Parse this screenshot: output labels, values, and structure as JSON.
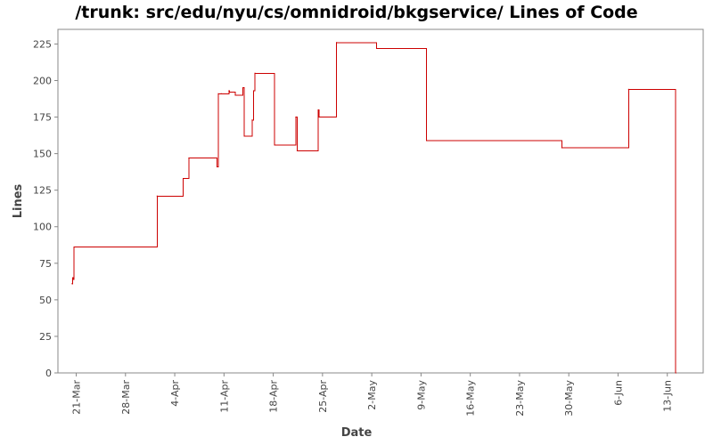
{
  "chart_data": {
    "type": "line",
    "title": "/trunk: src/edu/nyu/cs/omnidroid/bkgservice/ Lines of Code",
    "xlabel": "Date",
    "ylabel": "Lines",
    "ylim": [
      0,
      235
    ],
    "yticks": [
      0,
      25,
      50,
      75,
      100,
      125,
      150,
      175,
      200,
      225
    ],
    "xticks": [
      {
        "label": "21-Mar",
        "day": 0
      },
      {
        "label": "28-Mar",
        "day": 7
      },
      {
        "label": "4-Apr",
        "day": 14
      },
      {
        "label": "11-Apr",
        "day": 21
      },
      {
        "label": "18-Apr",
        "day": 28
      },
      {
        "label": "25-Apr",
        "day": 35
      },
      {
        "label": "2-May",
        "day": 42
      },
      {
        "label": "9-May",
        "day": 49
      },
      {
        "label": "16-May",
        "day": 56
      },
      {
        "label": "23-May",
        "day": 63
      },
      {
        "label": "30-May",
        "day": 70
      },
      {
        "label": "6-Jun",
        "day": 77
      },
      {
        "label": "13-Jun",
        "day": 84
      }
    ],
    "xlim_days": [
      -2.6,
      89.1
    ],
    "grid": false,
    "line_color": "#cc0000",
    "series": [
      {
        "step": true,
        "points": [
          {
            "day": -0.6,
            "value": 61
          },
          {
            "day": -0.5,
            "value": 65
          },
          {
            "day": -0.4,
            "value": 64
          },
          {
            "day": -0.3,
            "value": 86
          },
          {
            "day": 11.5,
            "value": 121
          },
          {
            "day": 15.2,
            "value": 133
          },
          {
            "day": 16.0,
            "value": 147
          },
          {
            "day": 20.0,
            "value": 141
          },
          {
            "day": 20.2,
            "value": 191
          },
          {
            "day": 20.6,
            "value": 191
          },
          {
            "day": 21.7,
            "value": 193
          },
          {
            "day": 21.8,
            "value": 192
          },
          {
            "day": 22.6,
            "value": 190
          },
          {
            "day": 23.7,
            "value": 195
          },
          {
            "day": 23.9,
            "value": 162
          },
          {
            "day": 25.0,
            "value": 173
          },
          {
            "day": 25.2,
            "value": 193
          },
          {
            "day": 25.4,
            "value": 205
          },
          {
            "day": 28.2,
            "value": 156
          },
          {
            "day": 31.2,
            "value": 175
          },
          {
            "day": 31.4,
            "value": 152
          },
          {
            "day": 34.4,
            "value": 180
          },
          {
            "day": 34.5,
            "value": 175
          },
          {
            "day": 37.0,
            "value": 226
          },
          {
            "day": 42.7,
            "value": 222
          },
          {
            "day": 49.8,
            "value": 159
          },
          {
            "day": 69.0,
            "value": 154
          },
          {
            "day": 78.5,
            "value": 194
          },
          {
            "day": 85.2,
            "value": 0
          }
        ]
      }
    ]
  }
}
